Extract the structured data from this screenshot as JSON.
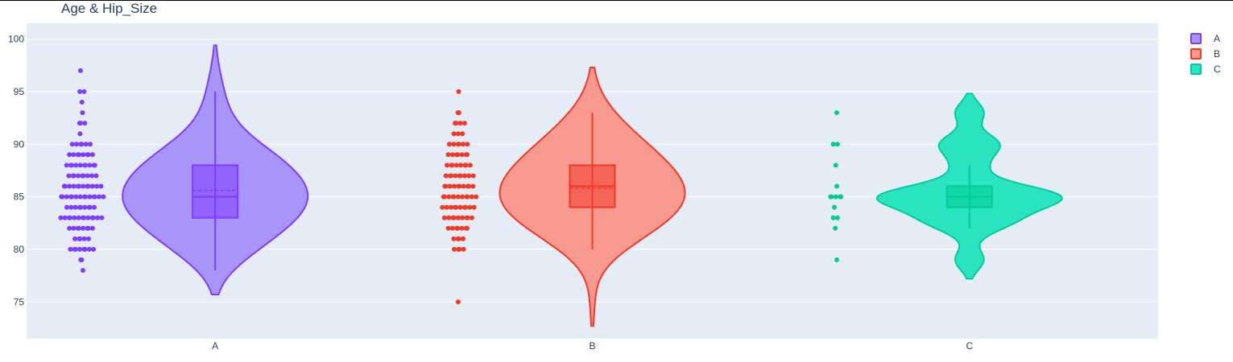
{
  "chart_data": {
    "type": "violin",
    "title": "Age & Hip_Size",
    "xlabel": "",
    "ylabel": "",
    "ylim": [
      71.5,
      101.5
    ],
    "yticks": [
      75,
      80,
      85,
      90,
      95,
      100
    ],
    "categories": [
      "A",
      "B",
      "C"
    ],
    "legend": {
      "position": "top-right",
      "entries": [
        "A",
        "B",
        "C"
      ]
    },
    "grid": true,
    "series": [
      {
        "name": "A",
        "color": "#7f3cff",
        "fill": "#a895fa",
        "box": {
          "q1": 83,
          "median": 85,
          "q3": 88,
          "mean": 85.6,
          "whisker_low": 78,
          "whisker_high": 95
        },
        "kde_range": [
          75.7,
          99.4
        ],
        "points": [
          [
            97,
            1
          ],
          [
            95,
            2
          ],
          [
            94,
            1
          ],
          [
            93,
            1
          ],
          [
            92,
            3
          ],
          [
            91,
            1
          ],
          [
            90,
            6
          ],
          [
            89,
            8
          ],
          [
            88,
            10
          ],
          [
            87,
            9
          ],
          [
            86,
            12
          ],
          [
            85,
            14
          ],
          [
            84,
            9
          ],
          [
            83,
            13
          ],
          [
            82,
            8
          ],
          [
            81,
            5
          ],
          [
            80,
            8
          ],
          [
            79,
            2
          ],
          [
            78,
            1
          ]
        ]
      },
      {
        "name": "B",
        "color": "#ef3a2a",
        "fill": "#f7998e",
        "box": {
          "q1": 84,
          "median": 86,
          "q3": 88,
          "mean": 85.8,
          "whisker_low": 80,
          "whisker_high": 93
        },
        "kde_range": [
          72.7,
          97.3
        ],
        "points": [
          [
            95,
            1
          ],
          [
            93,
            2
          ],
          [
            92,
            4
          ],
          [
            91,
            3
          ],
          [
            90,
            6
          ],
          [
            89,
            7
          ],
          [
            88,
            8
          ],
          [
            87,
            9
          ],
          [
            86,
            10
          ],
          [
            85,
            11
          ],
          [
            84,
            10
          ],
          [
            83,
            9
          ],
          [
            82,
            7
          ],
          [
            81,
            4
          ],
          [
            80,
            4
          ],
          [
            75,
            1
          ]
        ]
      },
      {
        "name": "C",
        "color": "#00cc96",
        "fill": "#2ae3c1",
        "box": {
          "q1": 84,
          "median": 85,
          "q3": 86,
          "mean": 85,
          "whisker_low": 82,
          "whisker_high": 88
        },
        "kde_range": [
          77.2,
          94.8
        ],
        "points": [
          [
            93,
            1
          ],
          [
            90,
            2
          ],
          [
            88,
            1
          ],
          [
            86,
            1
          ],
          [
            85,
            5
          ],
          [
            84,
            1
          ],
          [
            83,
            2
          ],
          [
            82,
            1
          ],
          [
            79,
            1
          ]
        ]
      }
    ]
  }
}
